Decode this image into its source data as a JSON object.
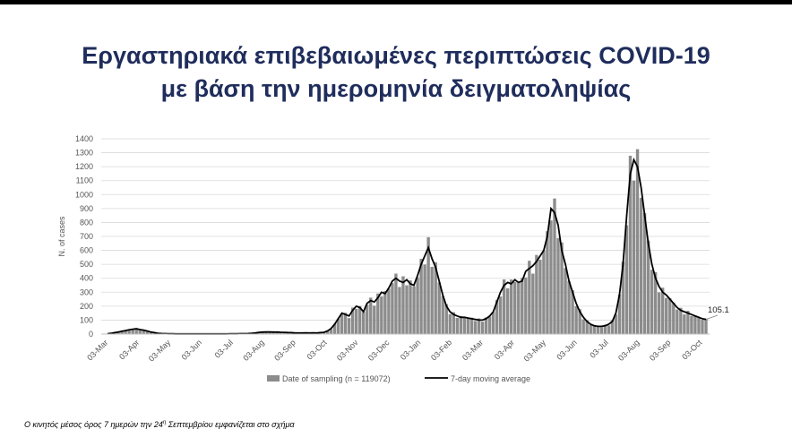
{
  "title": {
    "line1": "Εργαστηριακά επιβεβαιωμένες περιπτώσεις  COVID-19",
    "line2": "με βάση την ημερομηνία δειγματοληψίας"
  },
  "footnote": {
    "text": "Ο κινητός μέσος όρος 7 ημερών την 24",
    "superscript": "η",
    "text_after": " Σεπτεμβρίου εμφανίζεται στο σχήμα"
  },
  "colors": {
    "title": "#1f2d5c",
    "bars": "#8c8c8c",
    "line": "#000000",
    "grid": "#d9d9d9"
  },
  "chart_data": {
    "type": "bar",
    "ylabel": "N. of cases",
    "xlabel": "",
    "ylim": [
      0,
      1400
    ],
    "yticks": [
      0,
      100,
      200,
      300,
      400,
      500,
      600,
      700,
      800,
      900,
      1000,
      1100,
      1200,
      1300,
      1400
    ],
    "xticks": [
      "03-Mar",
      "03-Apr",
      "03-May",
      "03-Jun",
      "03-Jul",
      "03-Aug",
      "03-Sep",
      "03-Oct",
      "03-Nov",
      "03-Dec",
      "03-Jan",
      "03-Feb",
      "03-Mar",
      "03-Apr",
      "03-May",
      "03-Jun",
      "03-Jul",
      "03-Aug",
      "03-Sep",
      "03-Oct"
    ],
    "grid": true,
    "legend_position": "bottom",
    "annotation": "105.1",
    "series": [
      {
        "name": "Date of sampling (n = 119072)",
        "type": "bar",
        "x_start": "2020-03-03",
        "step_days": 3,
        "values": [
          2,
          5,
          10,
          15,
          20,
          25,
          30,
          35,
          38,
          32,
          28,
          22,
          15,
          10,
          6,
          4,
          3,
          2,
          2,
          1,
          1,
          1,
          1,
          1,
          1,
          1,
          1,
          1,
          1,
          1,
          1,
          1,
          1,
          1,
          2,
          2,
          2,
          3,
          3,
          4,
          5,
          8,
          12,
          14,
          15,
          15,
          14,
          14,
          13,
          12,
          11,
          10,
          8,
          8,
          8,
          9,
          8,
          9,
          8,
          10,
          12,
          22,
          40,
          70,
          110,
          150,
          140,
          130,
          170,
          200,
          190,
          160,
          220,
          240,
          230,
          260,
          300,
          290,
          330,
          380,
          400,
          380,
          370,
          390,
          360,
          350,
          420,
          500,
          560,
          620,
          540,
          480,
          380,
          280,
          200,
          160,
          140,
          130,
          120,
          120,
          115,
          110,
          105,
          100,
          100,
          110,
          130,
          160,
          230,
          300,
          350,
          370,
          360,
          390,
          370,
          380,
          450,
          470,
          490,
          520,
          560,
          600,
          700,
          900,
          870,
          780,
          600,
          500,
          380,
          300,
          220,
          160,
          120,
          90,
          70,
          60,
          55,
          55,
          60,
          70,
          90,
          150,
          280,
          500,
          850,
          1150,
          1250,
          1200,
          1050,
          850,
          650,
          500,
          400,
          340,
          300,
          280,
          250,
          220,
          190,
          170,
          160,
          150,
          140,
          130,
          120,
          110,
          100
        ]
      },
      {
        "name": "7-day moving average",
        "type": "line",
        "x_start": "2020-03-03",
        "step_days": 3,
        "values": [
          2,
          5,
          10,
          15,
          20,
          25,
          30,
          35,
          38,
          32,
          28,
          22,
          15,
          10,
          6,
          4,
          3,
          2,
          2,
          1,
          1,
          1,
          1,
          1,
          1,
          1,
          1,
          1,
          1,
          1,
          1,
          1,
          1,
          1,
          2,
          2,
          2,
          3,
          3,
          4,
          5,
          8,
          12,
          14,
          15,
          15,
          14,
          14,
          13,
          12,
          11,
          10,
          8,
          8,
          8,
          9,
          8,
          9,
          8,
          10,
          12,
          22,
          40,
          70,
          110,
          150,
          140,
          130,
          170,
          200,
          190,
          160,
          220,
          240,
          230,
          260,
          300,
          290,
          330,
          380,
          400,
          380,
          370,
          390,
          360,
          350,
          420,
          500,
          560,
          620,
          540,
          480,
          380,
          280,
          200,
          160,
          140,
          130,
          120,
          120,
          115,
          110,
          105,
          100,
          100,
          110,
          130,
          160,
          230,
          300,
          350,
          370,
          360,
          390,
          370,
          380,
          450,
          470,
          490,
          520,
          560,
          600,
          700,
          900,
          870,
          780,
          600,
          500,
          380,
          300,
          220,
          160,
          120,
          90,
          70,
          60,
          55,
          55,
          60,
          70,
          90,
          150,
          280,
          500,
          850,
          1150,
          1250,
          1200,
          1050,
          850,
          650,
          500,
          400,
          340,
          300,
          280,
          250,
          220,
          190,
          170,
          160,
          150,
          140,
          130,
          120,
          110,
          105
        ]
      }
    ]
  }
}
